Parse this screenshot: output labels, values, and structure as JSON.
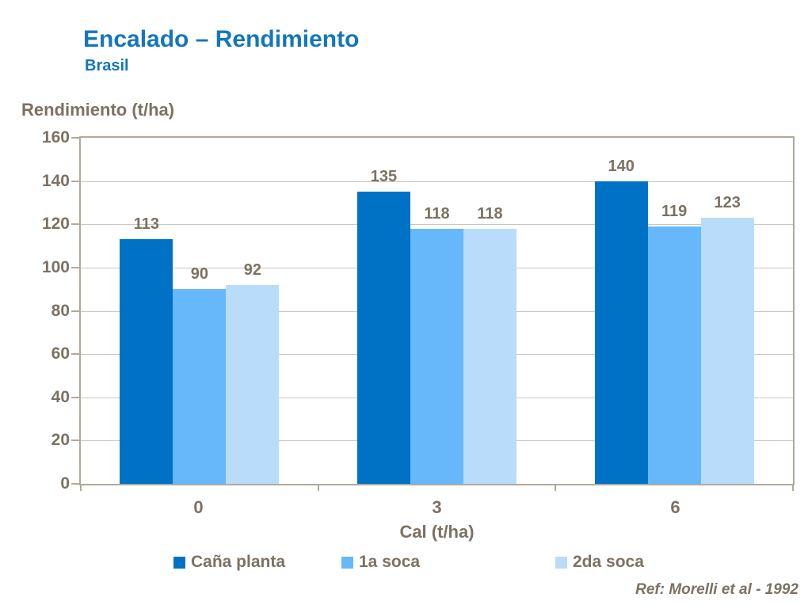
{
  "header": {
    "title": "Encalado – Rendimiento",
    "subtitle": "Brasil"
  },
  "footer": {
    "reference": "Ref: Morelli et al - 1992"
  },
  "chart_data": {
    "type": "bar",
    "title": "Encalado – Rendimiento",
    "subtitle": "Brasil",
    "ylabel": "Rendimiento (t/ha)",
    "xlabel": "Cal (t/ha)",
    "categories": [
      "0",
      "3",
      "6"
    ],
    "series": [
      {
        "name": "Caña planta",
        "color": "#0072C6",
        "values": [
          113,
          135,
          140
        ]
      },
      {
        "name": "1a soca",
        "color": "#66B8FA",
        "values": [
          90,
          118,
          119
        ]
      },
      {
        "name": "2da soca",
        "color": "#B9DCFB",
        "values": [
          92,
          118,
          123
        ]
      }
    ],
    "ylim": [
      0,
      160
    ],
    "ytick_step": 20,
    "grid": true,
    "data_labels": true,
    "legend_position": "bottom",
    "colors": {
      "title_blue": "#1476BD",
      "axis_text": "#7C7162",
      "plot_border": "#B2A99A",
      "gridline": "#C9C6C2"
    }
  }
}
